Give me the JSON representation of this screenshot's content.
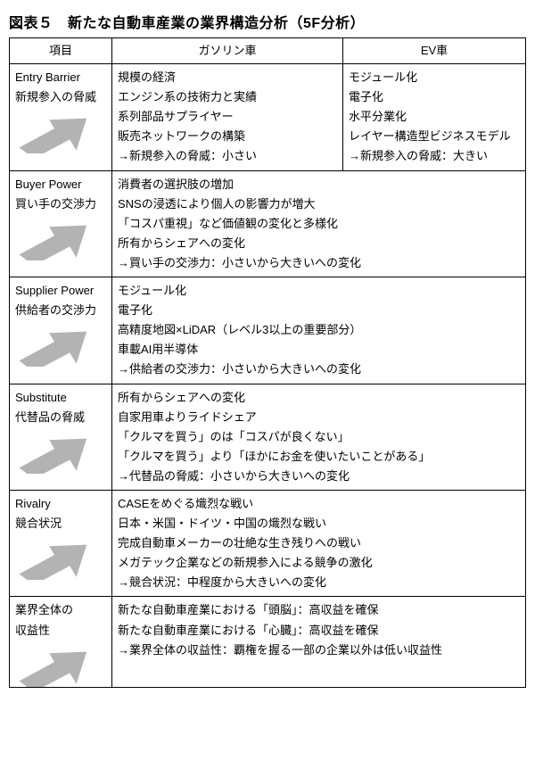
{
  "title": "図表５　新たな自動車産業の業界構造分析（5F分析）",
  "headers": {
    "col0": "項目",
    "col1": "ガソリン車",
    "col2": "EV車"
  },
  "arrow_color": "#b3b3b3",
  "rows": [
    {
      "label_en": "Entry Barrier",
      "label_jp": "新規参入の脅威",
      "split": true,
      "gas": [
        "規模の経済",
        "エンジン系の技術力と実績",
        "系列部品サプライヤー",
        "販売ネットワークの構築",
        "→新規参入の脅威：小さい"
      ],
      "ev": [
        "モジュール化",
        "電子化",
        "水平分業化",
        "レイヤー構造型ビジネスモデル",
        "→新規参入の脅威：大きい"
      ]
    },
    {
      "label_en": "Buyer Power",
      "label_jp": "買い手の交渉力",
      "split": false,
      "merged": [
        "消費者の選択肢の増加",
        "SNSの浸透により個人の影響力が増大",
        "「コスパ重視」など価値観の変化と多様化",
        "所有からシェアへの変化",
        "→買い手の交渉力：小さいから大きいへの変化"
      ]
    },
    {
      "label_en": "Supplier Power",
      "label_jp": "供給者の交渉力",
      "split": false,
      "merged": [
        "モジュール化",
        "電子化",
        "高精度地図×LiDAR（レベル3以上の重要部分）",
        "車載AI用半導体",
        "→供給者の交渉力：小さいから大きいへの変化"
      ]
    },
    {
      "label_en": "Substitute",
      "label_jp": "代替品の脅威",
      "split": false,
      "merged": [
        "所有からシェアへの変化",
        "自家用車よりライドシェア",
        "「クルマを買う」のは「コスパが良くない」",
        "「クルマを買う」より「ほかにお金を使いたいことがある」",
        "→代替品の脅威：小さいから大きいへの変化"
      ]
    },
    {
      "label_en": "Rivalry",
      "label_jp": "競合状況",
      "split": false,
      "merged": [
        "CASEをめぐる熾烈な戦い",
        "日本・米国・ドイツ・中国の熾烈な戦い",
        "完成自動車メーカーの壮絶な生き残りへの戦い",
        "メガテック企業などの新規参入による競争の激化",
        "→競合状況：中程度から大きいへの変化"
      ]
    },
    {
      "label_en": "業界全体の",
      "label_jp": "収益性",
      "split": false,
      "merged": [
        "新たな自動車産業における「頭脳」：高収益を確保",
        "新たな自動車産業における「心臓」：高収益を確保",
        "→業界全体の収益性：覇権を握る一部の企業以外は低い収益性"
      ]
    }
  ]
}
